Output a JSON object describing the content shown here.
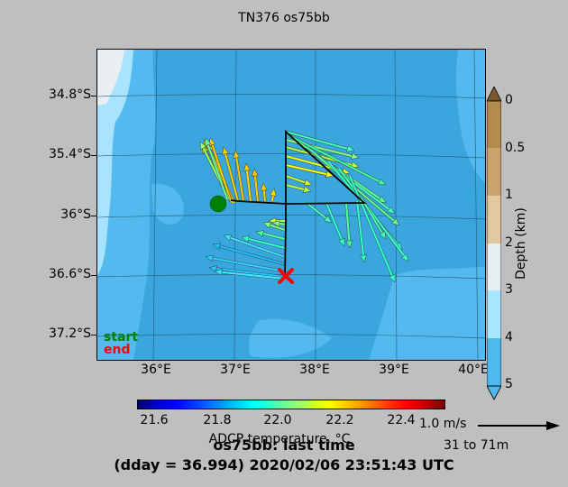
{
  "title": "TN376 os75bb",
  "map": {
    "y_ticks": [
      "34.8°S",
      "35.4°S",
      "36°S",
      "36.6°S",
      "37.2°S"
    ],
    "x_ticks": [
      "36°E",
      "37°E",
      "38°E",
      "39°E",
      "40°E"
    ],
    "start_label": "start",
    "end_label": "end",
    "start_color": "#008000",
    "end_color": "#ff0000"
  },
  "depth_colorbar": {
    "label": "Depth (km)",
    "ticks": [
      "0",
      "0.5",
      "1",
      "2",
      "3",
      "4",
      "5"
    ],
    "colors": [
      "#b58a4d",
      "#c9a36c",
      "#e2c7a1",
      "#e6eef2",
      "#a9e6ff",
      "#4fb8ec"
    ]
  },
  "temp_colorbar": {
    "label": "ADCP temperature, °C",
    "ticks": [
      "21.6",
      "21.8",
      "22.0",
      "22.2",
      "22.4"
    ]
  },
  "scale": {
    "label": "1.0 m/s",
    "range": "31 to 71m"
  },
  "footer": {
    "line1": "os75bb: last time",
    "line2": "(dday = 36.994) 2020/02/06 23:51:43 UTC"
  }
}
